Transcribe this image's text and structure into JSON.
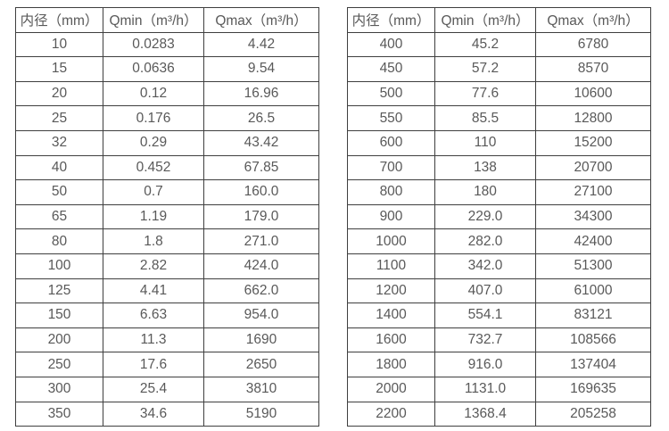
{
  "accent_colors": {
    "border": "#3f3f3f",
    "text": "#595959",
    "background": "#ffffff"
  },
  "chart_data": [
    {
      "type": "table",
      "title": "",
      "columns": [
        "内径（mm）",
        "Qmin（m³/h）",
        "Qmax（m³/h）"
      ],
      "rows": [
        [
          "10",
          "0.0283",
          "4.42"
        ],
        [
          "15",
          "0.0636",
          "9.54"
        ],
        [
          "20",
          "0.12",
          "16.96"
        ],
        [
          "25",
          "0.176",
          "26.5"
        ],
        [
          "32",
          "0.29",
          "43.42"
        ],
        [
          "40",
          "0.452",
          "67.85"
        ],
        [
          "50",
          "0.7",
          "160.0"
        ],
        [
          "65",
          "1.19",
          "179.0"
        ],
        [
          "80",
          "1.8",
          "271.0"
        ],
        [
          "100",
          "2.82",
          "424.0"
        ],
        [
          "125",
          "4.41",
          "662.0"
        ],
        [
          "150",
          "6.63",
          "954.0"
        ],
        [
          "200",
          "11.3",
          "1690"
        ],
        [
          "250",
          "17.6",
          "2650"
        ],
        [
          "300",
          "25.4",
          "3810"
        ],
        [
          "350",
          "34.6",
          "5190"
        ]
      ]
    },
    {
      "type": "table",
      "title": "",
      "columns": [
        "内径（mm）",
        "Qmin（m³/h）",
        "Qmax（m³/h）"
      ],
      "rows": [
        [
          "400",
          "45.2",
          "6780"
        ],
        [
          "450",
          "57.2",
          "8570"
        ],
        [
          "500",
          "77.6",
          "10600"
        ],
        [
          "550",
          "85.5",
          "12800"
        ],
        [
          "600",
          "110",
          "15200"
        ],
        [
          "700",
          "138",
          "20700"
        ],
        [
          "800",
          "180",
          "27100"
        ],
        [
          "900",
          "229.0",
          "34300"
        ],
        [
          "1000",
          "282.0",
          "42400"
        ],
        [
          "1100",
          "342.0",
          "51300"
        ],
        [
          "1200",
          "407.0",
          "61000"
        ],
        [
          "1400",
          "554.1",
          "83121"
        ],
        [
          "1600",
          "732.7",
          "108566"
        ],
        [
          "1800",
          "916.0",
          "137404"
        ],
        [
          "2000",
          "1131.0",
          "169635"
        ],
        [
          "2200",
          "1368.4",
          "205258"
        ]
      ]
    }
  ]
}
